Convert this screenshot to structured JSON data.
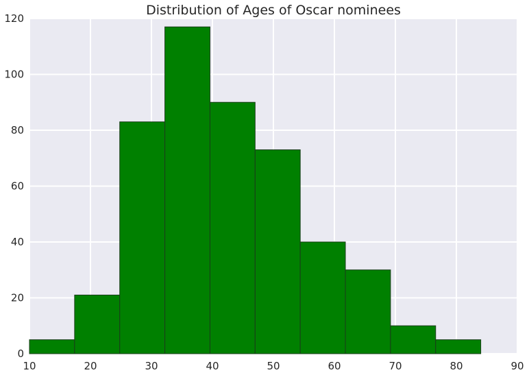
{
  "chart_data": {
    "type": "histogram",
    "title": "Distribution of Ages of Oscar nominees",
    "xlabel": "",
    "ylabel": "",
    "xlim": [
      10,
      90
    ],
    "ylim": [
      0,
      120
    ],
    "xticks": [
      10,
      20,
      30,
      40,
      50,
      60,
      70,
      80,
      90
    ],
    "yticks": [
      0,
      20,
      40,
      60,
      80,
      100,
      120
    ],
    "bin_edges": [
      10,
      17.4,
      24.8,
      32.2,
      39.6,
      47.0,
      54.4,
      61.8,
      69.2,
      76.6,
      84.0
    ],
    "counts": [
      5,
      21,
      83,
      117,
      90,
      73,
      40,
      30,
      10,
      5
    ],
    "bar_color": "#008000",
    "edge_color": "#1a3d1a",
    "background_color": "#eaeaf2",
    "grid_color": "#ffffff",
    "grid": true
  }
}
